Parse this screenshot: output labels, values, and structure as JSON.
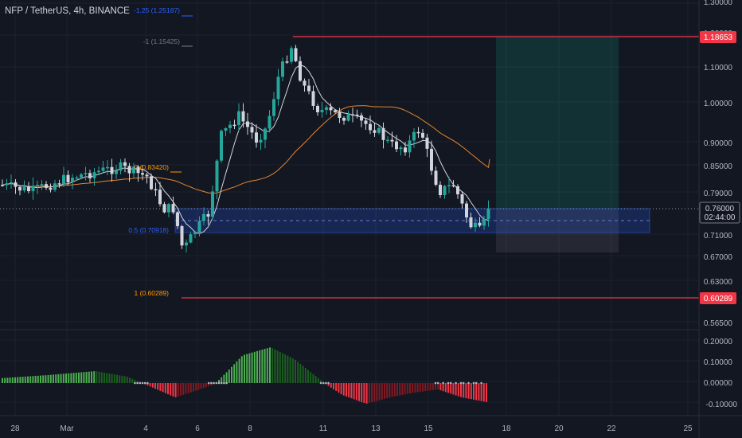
{
  "header": {
    "symbol": "NFP / TetherUS, 4h, BINANCE"
  },
  "fib_labels": [
    {
      "text": "-1.25 (1.25187)",
      "color": "#2962ff"
    },
    {
      "text": "-1 (1.15425)",
      "color": "#787b86"
    },
    {
      "text": "0 (0.83420)",
      "color": "#ff9800"
    },
    {
      "text": "0.5 (0.70918)",
      "color": "#2962ff"
    },
    {
      "text": "1 (0.60289)",
      "color": "#ff9800"
    }
  ],
  "price_axis": {
    "ticks": [
      "1.30000",
      "1.20000",
      "1.10000",
      "1.00000",
      "0.90000",
      "0.85000",
      "0.79000",
      "0.71000",
      "0.67000",
      "0.63000",
      "0.56500"
    ],
    "marker_high": "1.18653",
    "marker_low": "0.60289",
    "current_price": "0.76000",
    "countdown": "02:44:00"
  },
  "oscillator_axis": {
    "ticks": [
      "0.20000",
      "0.10000",
      "0.00000",
      "-0.10000"
    ]
  },
  "time_axis": {
    "ticks": [
      "28",
      "Mar",
      "4",
      "6",
      "8",
      "11",
      "13",
      "15",
      "18",
      "20",
      "22",
      "25"
    ]
  },
  "colors": {
    "background": "#131722",
    "up_candle": "#26a69a",
    "down_candle": "#d1d4dc",
    "hist_up": "#4caf50",
    "hist_down": "#f23645",
    "alert_line": "#f23645",
    "ma_fast": "#d1d4dc",
    "ma_slow": "#e6852e",
    "zone": "#2962ff",
    "target_zone": "#089981"
  }
}
